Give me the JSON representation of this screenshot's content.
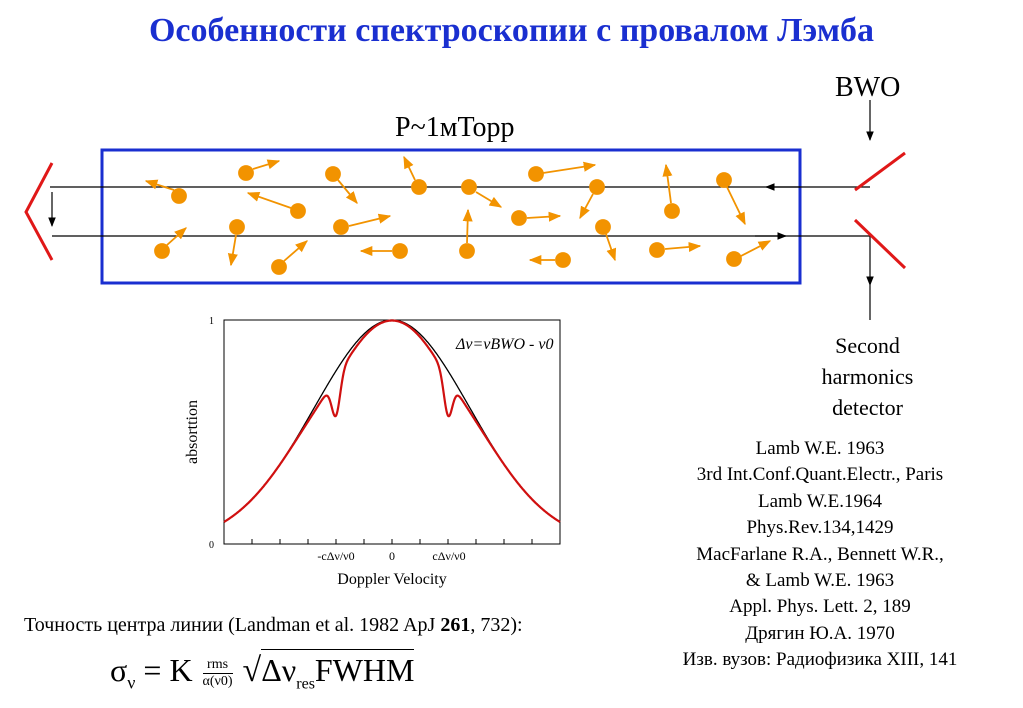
{
  "title": "Особенности спектроскопии с провалом Лэмба",
  "cell": {
    "pressure_label": "P~1мТорр"
  },
  "source_label": "BWO",
  "detector_label": [
    "Second",
    "harmonics",
    "detector"
  ],
  "plot": {
    "ylabel": "absorttion",
    "xlabel": "Doppler Velocity",
    "y_ticks": [
      "1",
      "0"
    ],
    "x_ticks": [
      "-cΔν/ν0",
      "0",
      "cΔν/ν0"
    ],
    "annotation": "Δν=νBWO - ν0"
  },
  "chart_data": {
    "type": "line",
    "xlabel": "Doppler Velocity",
    "ylabel": "absorttion",
    "ylim": [
      0,
      1
    ],
    "series": [
      {
        "shape": "gaussian",
        "center": 0,
        "peak": 1
      },
      {
        "shape": "gaussian with two lamb dips",
        "dip_positions": [
          "-cΔν/ν0",
          "cΔν/ν0"
        ]
      }
    ],
    "colors": {
      "doppler": "#000000",
      "lamb_dip": "#d01010"
    }
  },
  "references": [
    "Lamb W.E. 1963",
    "3rd Int.Conf.Quant.Electr., Paris",
    "Lamb W.E.1964",
    "Phys.Rev.134,1429",
    "MacFarlane R.A., Bennett W.R.,",
    "& Lamb W.E. 1963",
    "Appl. Phys. Lett. 2, 189",
    "Дрягин Ю.А. 1970",
    "Изв. вузов: Радиофизика XIII, 141"
  ],
  "accuracy": {
    "prefix": "Точность центра линии (Landman et al. 1982 ApJ ",
    "volume": "261",
    "suffix": ", 732):"
  },
  "formula": {
    "sigma": "σ",
    "sigma_sub": "ν",
    "equals": "= K",
    "frac_num": "rms",
    "frac_den": "α(ν0)",
    "radicand": "Δν",
    "radicand_sub": "res",
    "fwhm": "FWHM"
  },
  "colors": {
    "title": "#1a2fd0",
    "cell_border": "#1a2fd0",
    "molecule": "#f29300",
    "mirror": "#e01818"
  }
}
